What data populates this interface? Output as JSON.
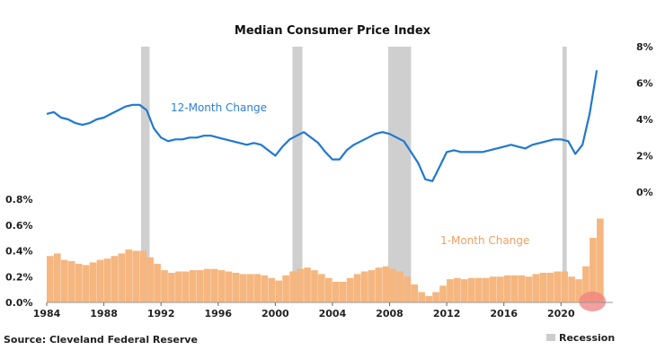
{
  "chart_data": {
    "title": "Median Consumer Price Index",
    "source": "Source: Cleveland Federal Reserve",
    "legend": {
      "label": "Recession",
      "color": "#cccccc",
      "placement": "bottom-right"
    },
    "x_ticks": [
      "1984",
      "1988",
      "1992",
      "1996",
      "2000",
      "2004",
      "2008",
      "2012",
      "2016",
      "2020"
    ],
    "xlim": [
      1984,
      2023
    ],
    "recessions": [
      [
        1990.6,
        1991.2
      ],
      [
        2001.2,
        2001.9
      ],
      [
        2007.9,
        2009.5
      ],
      [
        2020.1,
        2020.4
      ]
    ],
    "highlight": {
      "year": 2022.2,
      "value": 0.0075,
      "color": "#f08080"
    },
    "charts": [
      {
        "type": "line",
        "series_name": "12-Month Change",
        "color": "#1f78d1",
        "y_ticks": [
          "0%",
          "2%",
          "4%",
          "6%",
          "8%"
        ],
        "ylim": [
          0,
          8
        ],
        "x": [
          1984.0,
          1984.5,
          1985.0,
          1985.5,
          1986.0,
          1986.5,
          1987.0,
          1987.5,
          1988.0,
          1988.5,
          1989.0,
          1989.5,
          1990.0,
          1990.5,
          1991.0,
          1991.5,
          1992.0,
          1992.5,
          1993.0,
          1993.5,
          1994.0,
          1994.5,
          1995.0,
          1995.5,
          1996.0,
          1996.5,
          1997.0,
          1997.5,
          1998.0,
          1998.5,
          1999.0,
          1999.5,
          2000.0,
          2000.5,
          2001.0,
          2001.5,
          2002.0,
          2002.5,
          2003.0,
          2003.5,
          2004.0,
          2004.5,
          2005.0,
          2005.5,
          2006.0,
          2006.5,
          2007.0,
          2007.5,
          2008.0,
          2008.5,
          2009.0,
          2009.5,
          2010.0,
          2010.5,
          2011.0,
          2011.5,
          2012.0,
          2012.5,
          2013.0,
          2013.5,
          2014.0,
          2014.5,
          2015.0,
          2015.5,
          2016.0,
          2016.5,
          2017.0,
          2017.5,
          2018.0,
          2018.5,
          2019.0,
          2019.5,
          2020.0,
          2020.5,
          2021.0,
          2021.5,
          2022.0,
          2022.5
        ],
        "values": [
          4.3,
          4.4,
          4.1,
          4.0,
          3.8,
          3.7,
          3.8,
          4.0,
          4.1,
          4.3,
          4.5,
          4.7,
          4.8,
          4.8,
          4.5,
          3.5,
          3.0,
          2.8,
          2.9,
          2.9,
          3.0,
          3.0,
          3.1,
          3.1,
          3.0,
          2.9,
          2.8,
          2.7,
          2.6,
          2.7,
          2.6,
          2.3,
          2.0,
          2.5,
          2.9,
          3.1,
          3.3,
          3.0,
          2.7,
          2.2,
          1.8,
          1.8,
          2.3,
          2.6,
          2.8,
          3.0,
          3.2,
          3.3,
          3.2,
          3.0,
          2.8,
          2.2,
          1.6,
          0.7,
          0.6,
          1.4,
          2.2,
          2.3,
          2.2,
          2.2,
          2.2,
          2.2,
          2.3,
          2.4,
          2.5,
          2.6,
          2.5,
          2.4,
          2.6,
          2.7,
          2.8,
          2.9,
          2.9,
          2.8,
          2.1,
          2.6,
          4.3,
          6.7
        ]
      },
      {
        "type": "bar",
        "series_name": "1-Month Change",
        "color": "#f5b67f",
        "y_ticks": [
          "0.0%",
          "0.2%",
          "0.4%",
          "0.6%",
          "0.8%"
        ],
        "ylim": [
          0,
          0.8
        ],
        "x": [
          1984.0,
          1984.5,
          1985.0,
          1985.5,
          1986.0,
          1986.5,
          1987.0,
          1987.5,
          1988.0,
          1988.5,
          1989.0,
          1989.5,
          1990.0,
          1990.5,
          1991.0,
          1991.5,
          1992.0,
          1992.5,
          1993.0,
          1993.5,
          1994.0,
          1994.5,
          1995.0,
          1995.5,
          1996.0,
          1996.5,
          1997.0,
          1997.5,
          1998.0,
          1998.5,
          1999.0,
          1999.5,
          2000.0,
          2000.5,
          2001.0,
          2001.5,
          2002.0,
          2002.5,
          2003.0,
          2003.5,
          2004.0,
          2004.5,
          2005.0,
          2005.5,
          2006.0,
          2006.5,
          2007.0,
          2007.5,
          2008.0,
          2008.5,
          2009.0,
          2009.5,
          2010.0,
          2010.5,
          2011.0,
          2011.5,
          2012.0,
          2012.5,
          2013.0,
          2013.5,
          2014.0,
          2014.5,
          2015.0,
          2015.5,
          2016.0,
          2016.5,
          2017.0,
          2017.5,
          2018.0,
          2018.5,
          2019.0,
          2019.5,
          2020.0,
          2020.5,
          2021.0,
          2021.5,
          2022.0,
          2022.5
        ],
        "values": [
          0.36,
          0.38,
          0.33,
          0.32,
          0.3,
          0.29,
          0.31,
          0.33,
          0.34,
          0.36,
          0.38,
          0.41,
          0.4,
          0.4,
          0.35,
          0.3,
          0.25,
          0.23,
          0.24,
          0.24,
          0.25,
          0.25,
          0.26,
          0.26,
          0.25,
          0.24,
          0.23,
          0.22,
          0.22,
          0.22,
          0.21,
          0.19,
          0.17,
          0.21,
          0.24,
          0.26,
          0.27,
          0.25,
          0.22,
          0.19,
          0.16,
          0.16,
          0.19,
          0.22,
          0.24,
          0.25,
          0.27,
          0.28,
          0.26,
          0.24,
          0.2,
          0.14,
          0.08,
          0.05,
          0.08,
          0.13,
          0.18,
          0.19,
          0.18,
          0.19,
          0.19,
          0.19,
          0.2,
          0.2,
          0.21,
          0.21,
          0.21,
          0.2,
          0.22,
          0.23,
          0.23,
          0.24,
          0.24,
          0.2,
          0.18,
          0.28,
          0.5,
          0.65
        ]
      }
    ]
  }
}
